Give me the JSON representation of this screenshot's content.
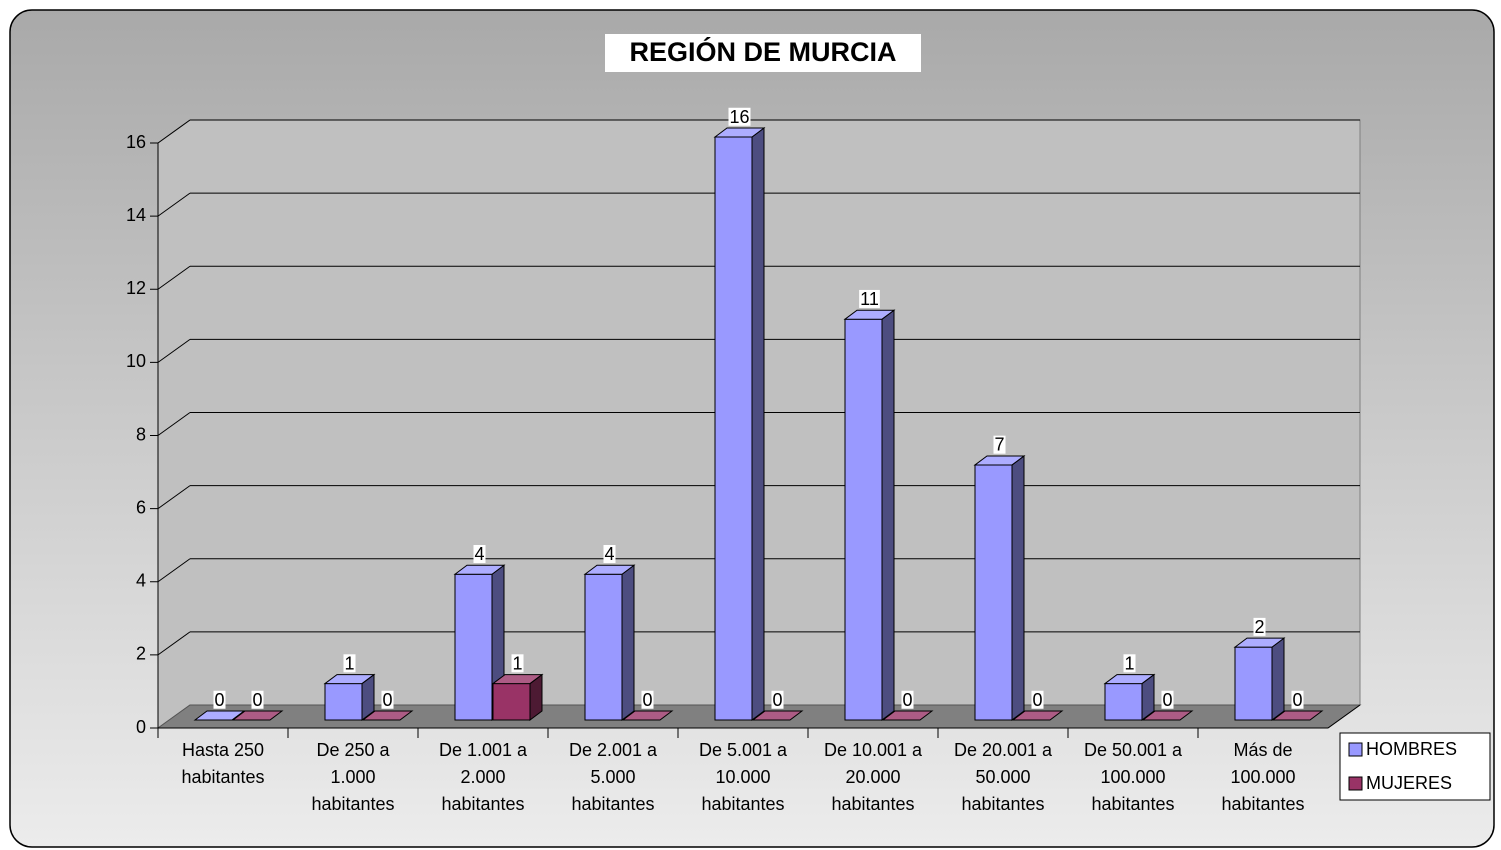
{
  "chart_data": {
    "type": "bar3d",
    "title": "REGIÓN DE MURCIA",
    "categories": [
      "Hasta 250 habitantes",
      "De 250 a 1.000 habitantes",
      "De 1.001 a 2.000 habitantes",
      "De 2.001 a 5.000 habitantes",
      "De 5.001 a 10.000 habitantes",
      "De 10.001 a 20.000 habitantes",
      "De 20.001 a 50.000 habitantes",
      "De 50.001 a 100.000 habitantes",
      "Más de 100.000 habitantes"
    ],
    "series": [
      {
        "name": "HOMBRES",
        "color": "#9999ff",
        "values": [
          0,
          1,
          4,
          4,
          16,
          11,
          7,
          1,
          2
        ]
      },
      {
        "name": "MUJERES",
        "color": "#993366",
        "values": [
          0,
          0,
          1,
          0,
          0,
          0,
          0,
          0,
          0
        ]
      }
    ],
    "ylim": [
      0,
      16
    ],
    "yticks": [
      0,
      2,
      4,
      6,
      8,
      10,
      12,
      14,
      16
    ],
    "grid": true,
    "legend": "right"
  }
}
